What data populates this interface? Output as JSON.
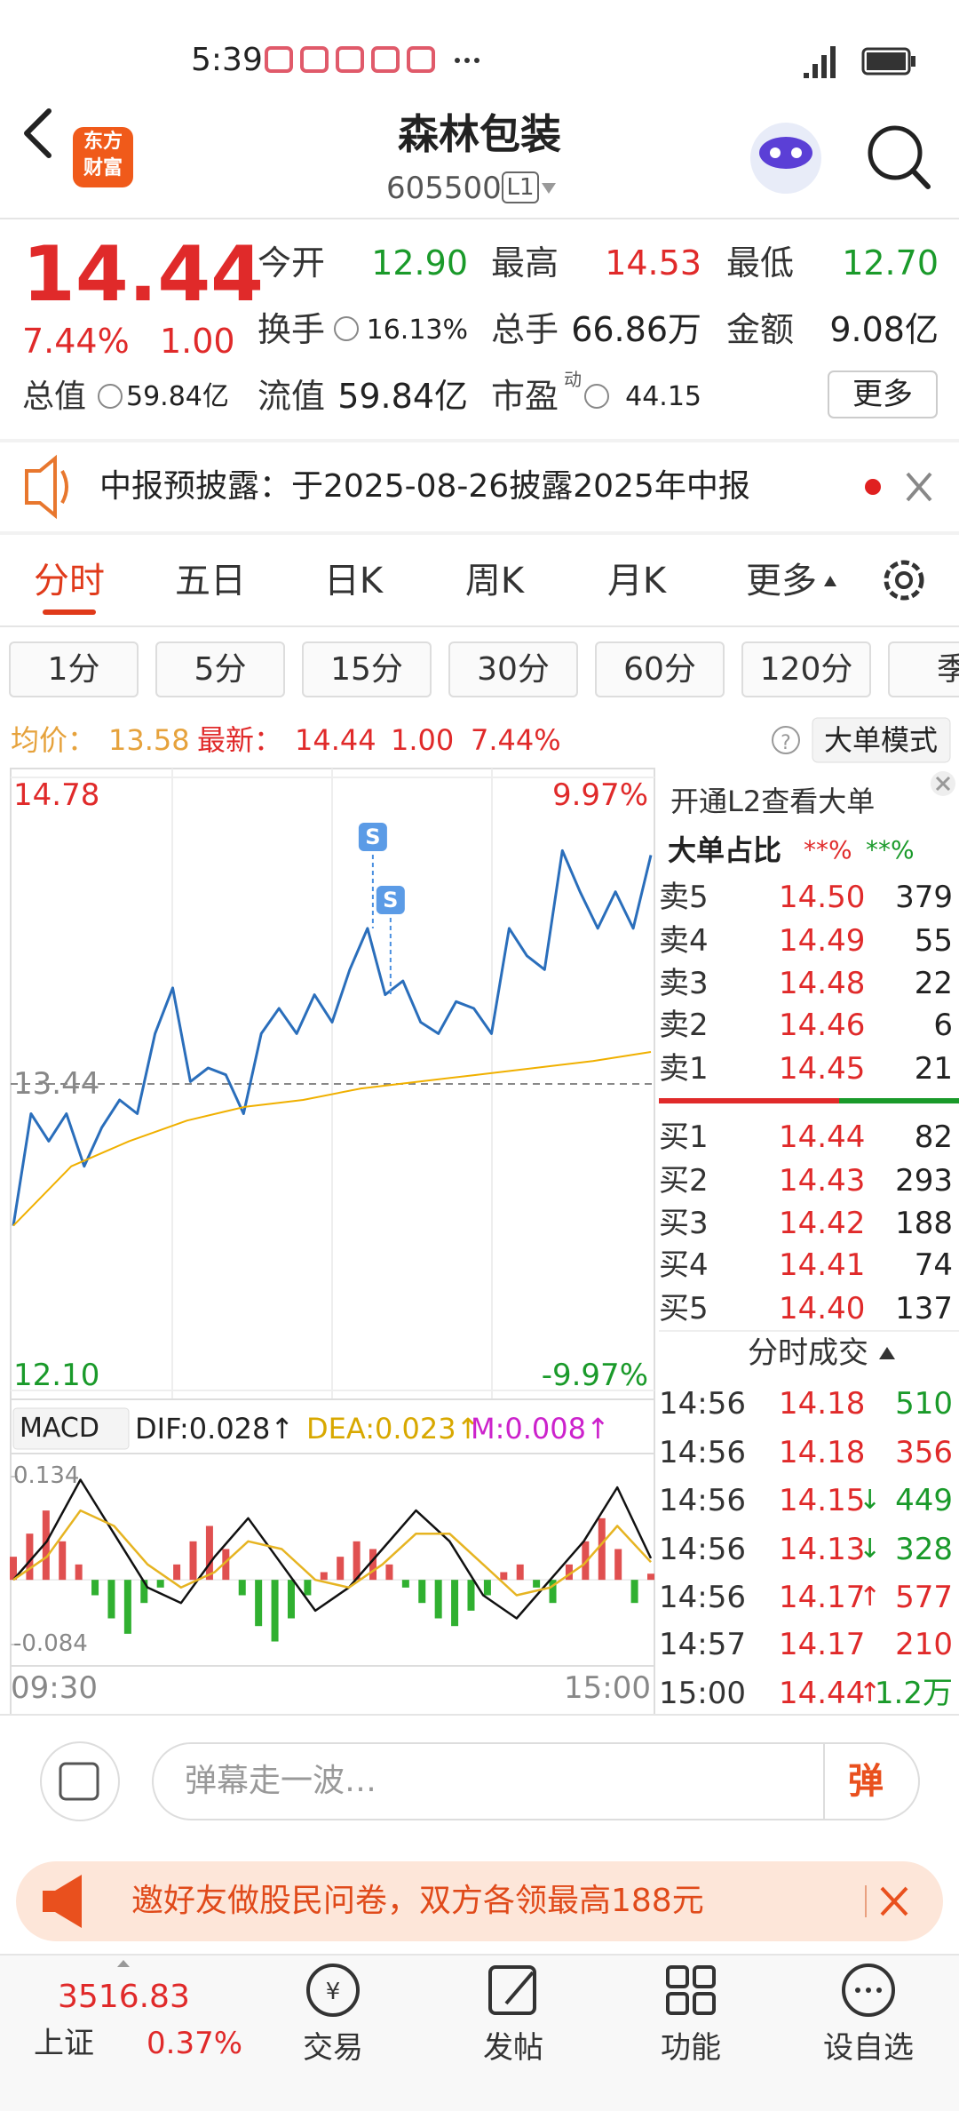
{
  "status_bar": {
    "time": "5:39"
  },
  "header": {
    "logo": [
      "东方",
      "财富"
    ],
    "title": "森林包装",
    "code": "605500",
    "level": "L1"
  },
  "quote": {
    "price": "14.44",
    "change_pct": "7.44%",
    "change": "1.00",
    "stats": [
      {
        "label": "今开",
        "value": "12.90",
        "color": "#1a9a2a"
      },
      {
        "label": "最高",
        "value": "14.53",
        "color": "#e02a2a"
      },
      {
        "label": "最低",
        "value": "12.70",
        "color": "#1a9a2a"
      },
      {
        "label": "换手",
        "value": "16.13%",
        "color": "#222222"
      },
      {
        "label": "总手",
        "value": "66.86万",
        "color": "#222222"
      },
      {
        "label": "金额",
        "value": "9.08亿",
        "color": "#222222"
      },
      {
        "label": "总值",
        "value": "59.84亿",
        "color": "#222222"
      },
      {
        "label": "流值",
        "value": "59.84亿",
        "color": "#222222"
      },
      {
        "label": "市盈",
        "sup": "动",
        "value": "44.15",
        "color": "#222222"
      }
    ],
    "more": "更多"
  },
  "notice": "中报预披露：于2025-08-26披露2025年中报",
  "tabs": [
    "分时",
    "五日",
    "日K",
    "周K",
    "月K",
    "更多"
  ],
  "active_tab": 0,
  "periods": [
    "1分",
    "5分",
    "15分",
    "30分",
    "60分",
    "120分",
    "季"
  ],
  "summary": {
    "avg_label": "均价：",
    "avg": "13.58",
    "latest_label": "最新：",
    "latest": "14.44",
    "change": "1.00",
    "change_pct": "7.44%",
    "mode": "大单模式"
  },
  "price_chart": {
    "type": "line",
    "ylim": [
      12.1,
      14.78
    ],
    "yticks": [
      {
        "value": 12.1,
        "label": "12.10"
      },
      13.44,
      14.78
    ],
    "y2lim": [
      -9.97,
      9.97
    ],
    "y2ticks": [
      {
        "value": -9.97,
        "label": "-9.97%"
      },
      {
        "value": 9.97,
        "label": "9.97%"
      }
    ],
    "xticks": [
      "09:30",
      "15:00"
    ],
    "grid": true,
    "annotations": [
      "S",
      "S"
    ],
    "series": [
      {
        "color": "#2a6ebb",
        "values": [
          12.82,
          13.31,
          13.19,
          13.31,
          13.08,
          13.25,
          13.37,
          13.31,
          13.66,
          13.86,
          13.45,
          13.51,
          13.48,
          13.31,
          13.66,
          13.77,
          13.66,
          13.83,
          13.71,
          13.94,
          14.12,
          13.83,
          13.89,
          13.71,
          13.66,
          13.8,
          13.77,
          13.66,
          14.12,
          14.0,
          13.94,
          14.46,
          14.28,
          14.12,
          14.28,
          14.12,
          14.44
        ]
      },
      {
        "color": "#f0b000",
        "values": [
          12.82,
          13.08,
          13.19,
          13.28,
          13.34,
          13.37,
          13.42,
          13.45,
          13.48,
          13.51,
          13.54,
          13.58
        ]
      }
    ]
  },
  "macd": {
    "type": "bar",
    "indicator": "MACD",
    "dif": "DIF:0.028↑",
    "dea": "DEA:0.023↑",
    "m": "M:0.008↑",
    "ylim": [
      -0.084,
      0.134
    ],
    "yticks": [
      -0.084,
      0.134
    ],
    "values": [
      0.03,
      0.06,
      0.09,
      0.05,
      0.02,
      -0.02,
      -0.05,
      -0.07,
      -0.03,
      -0.01,
      0.02,
      0.05,
      0.07,
      0.04,
      -0.02,
      -0.06,
      -0.08,
      -0.05,
      -0.02,
      0.01,
      0.03,
      0.05,
      0.04,
      0.02,
      -0.01,
      -0.03,
      -0.05,
      -0.06,
      -0.04,
      -0.02,
      0.01,
      0.02,
      -0.01,
      -0.03,
      0.02,
      0.05,
      0.08,
      0.04,
      -0.03,
      0.008
    ],
    "series": [
      {
        "color": "#111111",
        "values": [
          0.0,
          0.05,
          0.13,
          0.06,
          -0.01,
          -0.03,
          0.03,
          0.08,
          0.02,
          -0.04,
          -0.01,
          0.04,
          0.09,
          0.05,
          -0.02,
          -0.05,
          0.0,
          0.05,
          0.12,
          0.028
        ]
      },
      {
        "color": "#e6b422",
        "values": [
          0.0,
          0.03,
          0.09,
          0.07,
          0.02,
          -0.01,
          0.01,
          0.05,
          0.04,
          0.0,
          -0.01,
          0.02,
          0.06,
          0.06,
          0.02,
          -0.02,
          -0.01,
          0.02,
          0.07,
          0.023
        ]
      }
    ]
  },
  "order_book": {
    "promo": "开通L2查看大单",
    "ratio_label": "大单占比",
    "ratio_sell": "**%",
    "ratio_buy": "**%",
    "asks": [
      {
        "label": "卖5",
        "price": "14.50",
        "volume": "379"
      },
      {
        "label": "卖4",
        "price": "14.49",
        "volume": "55"
      },
      {
        "label": "卖3",
        "price": "14.48",
        "volume": "22"
      },
      {
        "label": "卖2",
        "price": "14.46",
        "volume": "6"
      },
      {
        "label": "卖1",
        "price": "14.45",
        "volume": "21"
      }
    ],
    "bids": [
      {
        "label": "买1",
        "price": "14.44",
        "volume": "82"
      },
      {
        "label": "买2",
        "price": "14.43",
        "volume": "293"
      },
      {
        "label": "买3",
        "price": "14.42",
        "volume": "188"
      },
      {
        "label": "买4",
        "price": "14.41",
        "volume": "74"
      },
      {
        "label": "买5",
        "price": "14.40",
        "volume": "137"
      }
    ],
    "trades_title": "分时成交",
    "trades": [
      {
        "time": "14:56",
        "price": "14.18",
        "volume": "510",
        "color": "#1a9a2a"
      },
      {
        "time": "14:56",
        "price": "14.18",
        "volume": "356",
        "color": "#e02a2a"
      },
      {
        "time": "14:56",
        "price": "14.15",
        "arrow": "↓",
        "volume": "449",
        "color": "#1a9a2a"
      },
      {
        "time": "14:56",
        "price": "14.13",
        "arrow": "↓",
        "volume": "328",
        "color": "#1a9a2a"
      },
      {
        "time": "14:56",
        "price": "14.17",
        "arrow": "↑",
        "volume": "577",
        "color": "#e02a2a"
      },
      {
        "time": "14:57",
        "price": "14.17",
        "volume": "210",
        "color": "#e02a2a"
      },
      {
        "time": "15:00",
        "price": "14.44",
        "arrow": "↑",
        "volume": "1.2万",
        "color": "#1a9a2a"
      }
    ]
  },
  "comment": {
    "placeholder": "弹幕走一波…",
    "button": "弹"
  },
  "banner": "邀好友做股民问卷，双方各领最高188元",
  "nav": {
    "index_value": "3516.83",
    "index_name": "上证",
    "index_pct": "0.37%",
    "items": [
      "交易",
      "发帖",
      "功能",
      "设自选"
    ]
  }
}
